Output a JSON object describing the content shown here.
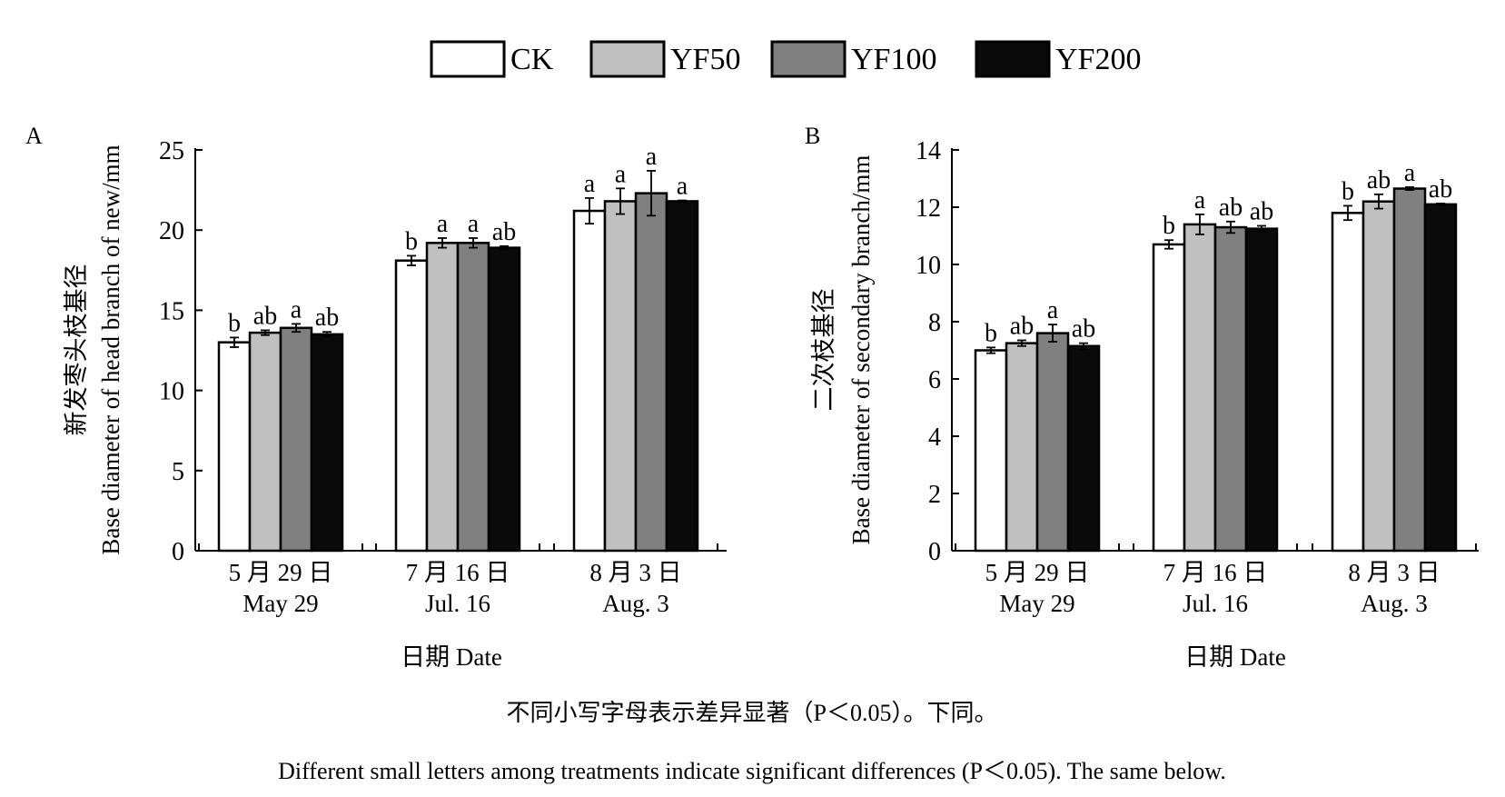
{
  "legend": [
    {
      "name": "CK",
      "color": "#ffffff"
    },
    {
      "name": "YF50",
      "color": "#c0c0c0"
    },
    {
      "name": "YF100",
      "color": "#808080"
    },
    {
      "name": "YF200",
      "color": "#0a0a0a"
    }
  ],
  "footnote": {
    "line1": "不同小写字母表示差异显著（P＜0.05）。下同。",
    "line2": "Different small letters among treatments indicate significant differences (P＜0.05). The same below."
  },
  "chart_data": [
    {
      "panel": "A",
      "type": "bar",
      "ylabel_cn": "新发枣头枝基径",
      "ylabel_en": "Base diameter of head branch of new/mm",
      "xlabel": "日期 Date",
      "ylim": [
        0,
        25
      ],
      "yticks": [
        0,
        5,
        10,
        15,
        20,
        25
      ],
      "categories": [
        {
          "cn": "5 月 29 日",
          "en": "May 29"
        },
        {
          "cn": "7 月 16 日",
          "en": "Jul. 16"
        },
        {
          "cn": "8 月 3 日",
          "en": "Aug. 3"
        }
      ],
      "series": [
        {
          "name": "CK",
          "values": [
            13.0,
            18.1,
            21.2
          ],
          "errors": [
            0.3,
            0.3,
            0.8
          ],
          "letters": [
            "b",
            "b",
            "a"
          ]
        },
        {
          "name": "YF50",
          "values": [
            13.6,
            19.2,
            21.8
          ],
          "errors": [
            0.15,
            0.3,
            0.8
          ],
          "letters": [
            "ab",
            "a",
            "a"
          ]
        },
        {
          "name": "YF100",
          "values": [
            13.9,
            19.2,
            22.3
          ],
          "errors": [
            0.25,
            0.3,
            1.4
          ],
          "letters": [
            "a",
            "a",
            "a"
          ]
        },
        {
          "name": "YF200",
          "values": [
            13.5,
            18.9,
            21.8
          ],
          "errors": [
            0.15,
            0.1,
            0.05
          ],
          "letters": [
            "ab",
            "ab",
            "a"
          ]
        }
      ]
    },
    {
      "panel": "B",
      "type": "bar",
      "ylabel_cn": "二次枝基径",
      "ylabel_en": "Base diameter of secondary branch/mm",
      "xlabel": "日期 Date",
      "ylim": [
        0,
        14
      ],
      "yticks": [
        0,
        2,
        4,
        6,
        8,
        10,
        12,
        14
      ],
      "categories": [
        {
          "cn": "5 月 29 日",
          "en": "May 29"
        },
        {
          "cn": "7 月 16 日",
          "en": "Jul. 16"
        },
        {
          "cn": "8 月 3 日",
          "en": "Aug. 3"
        }
      ],
      "series": [
        {
          "name": "CK",
          "values": [
            7.0,
            10.7,
            11.8
          ],
          "errors": [
            0.1,
            0.15,
            0.25
          ],
          "letters": [
            "b",
            "b",
            "b"
          ]
        },
        {
          "name": "YF50",
          "values": [
            7.25,
            11.4,
            12.2
          ],
          "errors": [
            0.1,
            0.35,
            0.25
          ],
          "letters": [
            "ab",
            "a",
            "ab"
          ]
        },
        {
          "name": "YF100",
          "values": [
            7.6,
            11.3,
            12.65
          ],
          "errors": [
            0.3,
            0.2,
            0.05
          ],
          "letters": [
            "a",
            "ab",
            "a"
          ]
        },
        {
          "name": "YF200",
          "values": [
            7.15,
            11.25,
            12.1
          ],
          "errors": [
            0.1,
            0.1,
            0.03
          ],
          "letters": [
            "ab",
            "ab",
            "ab"
          ]
        }
      ]
    }
  ]
}
